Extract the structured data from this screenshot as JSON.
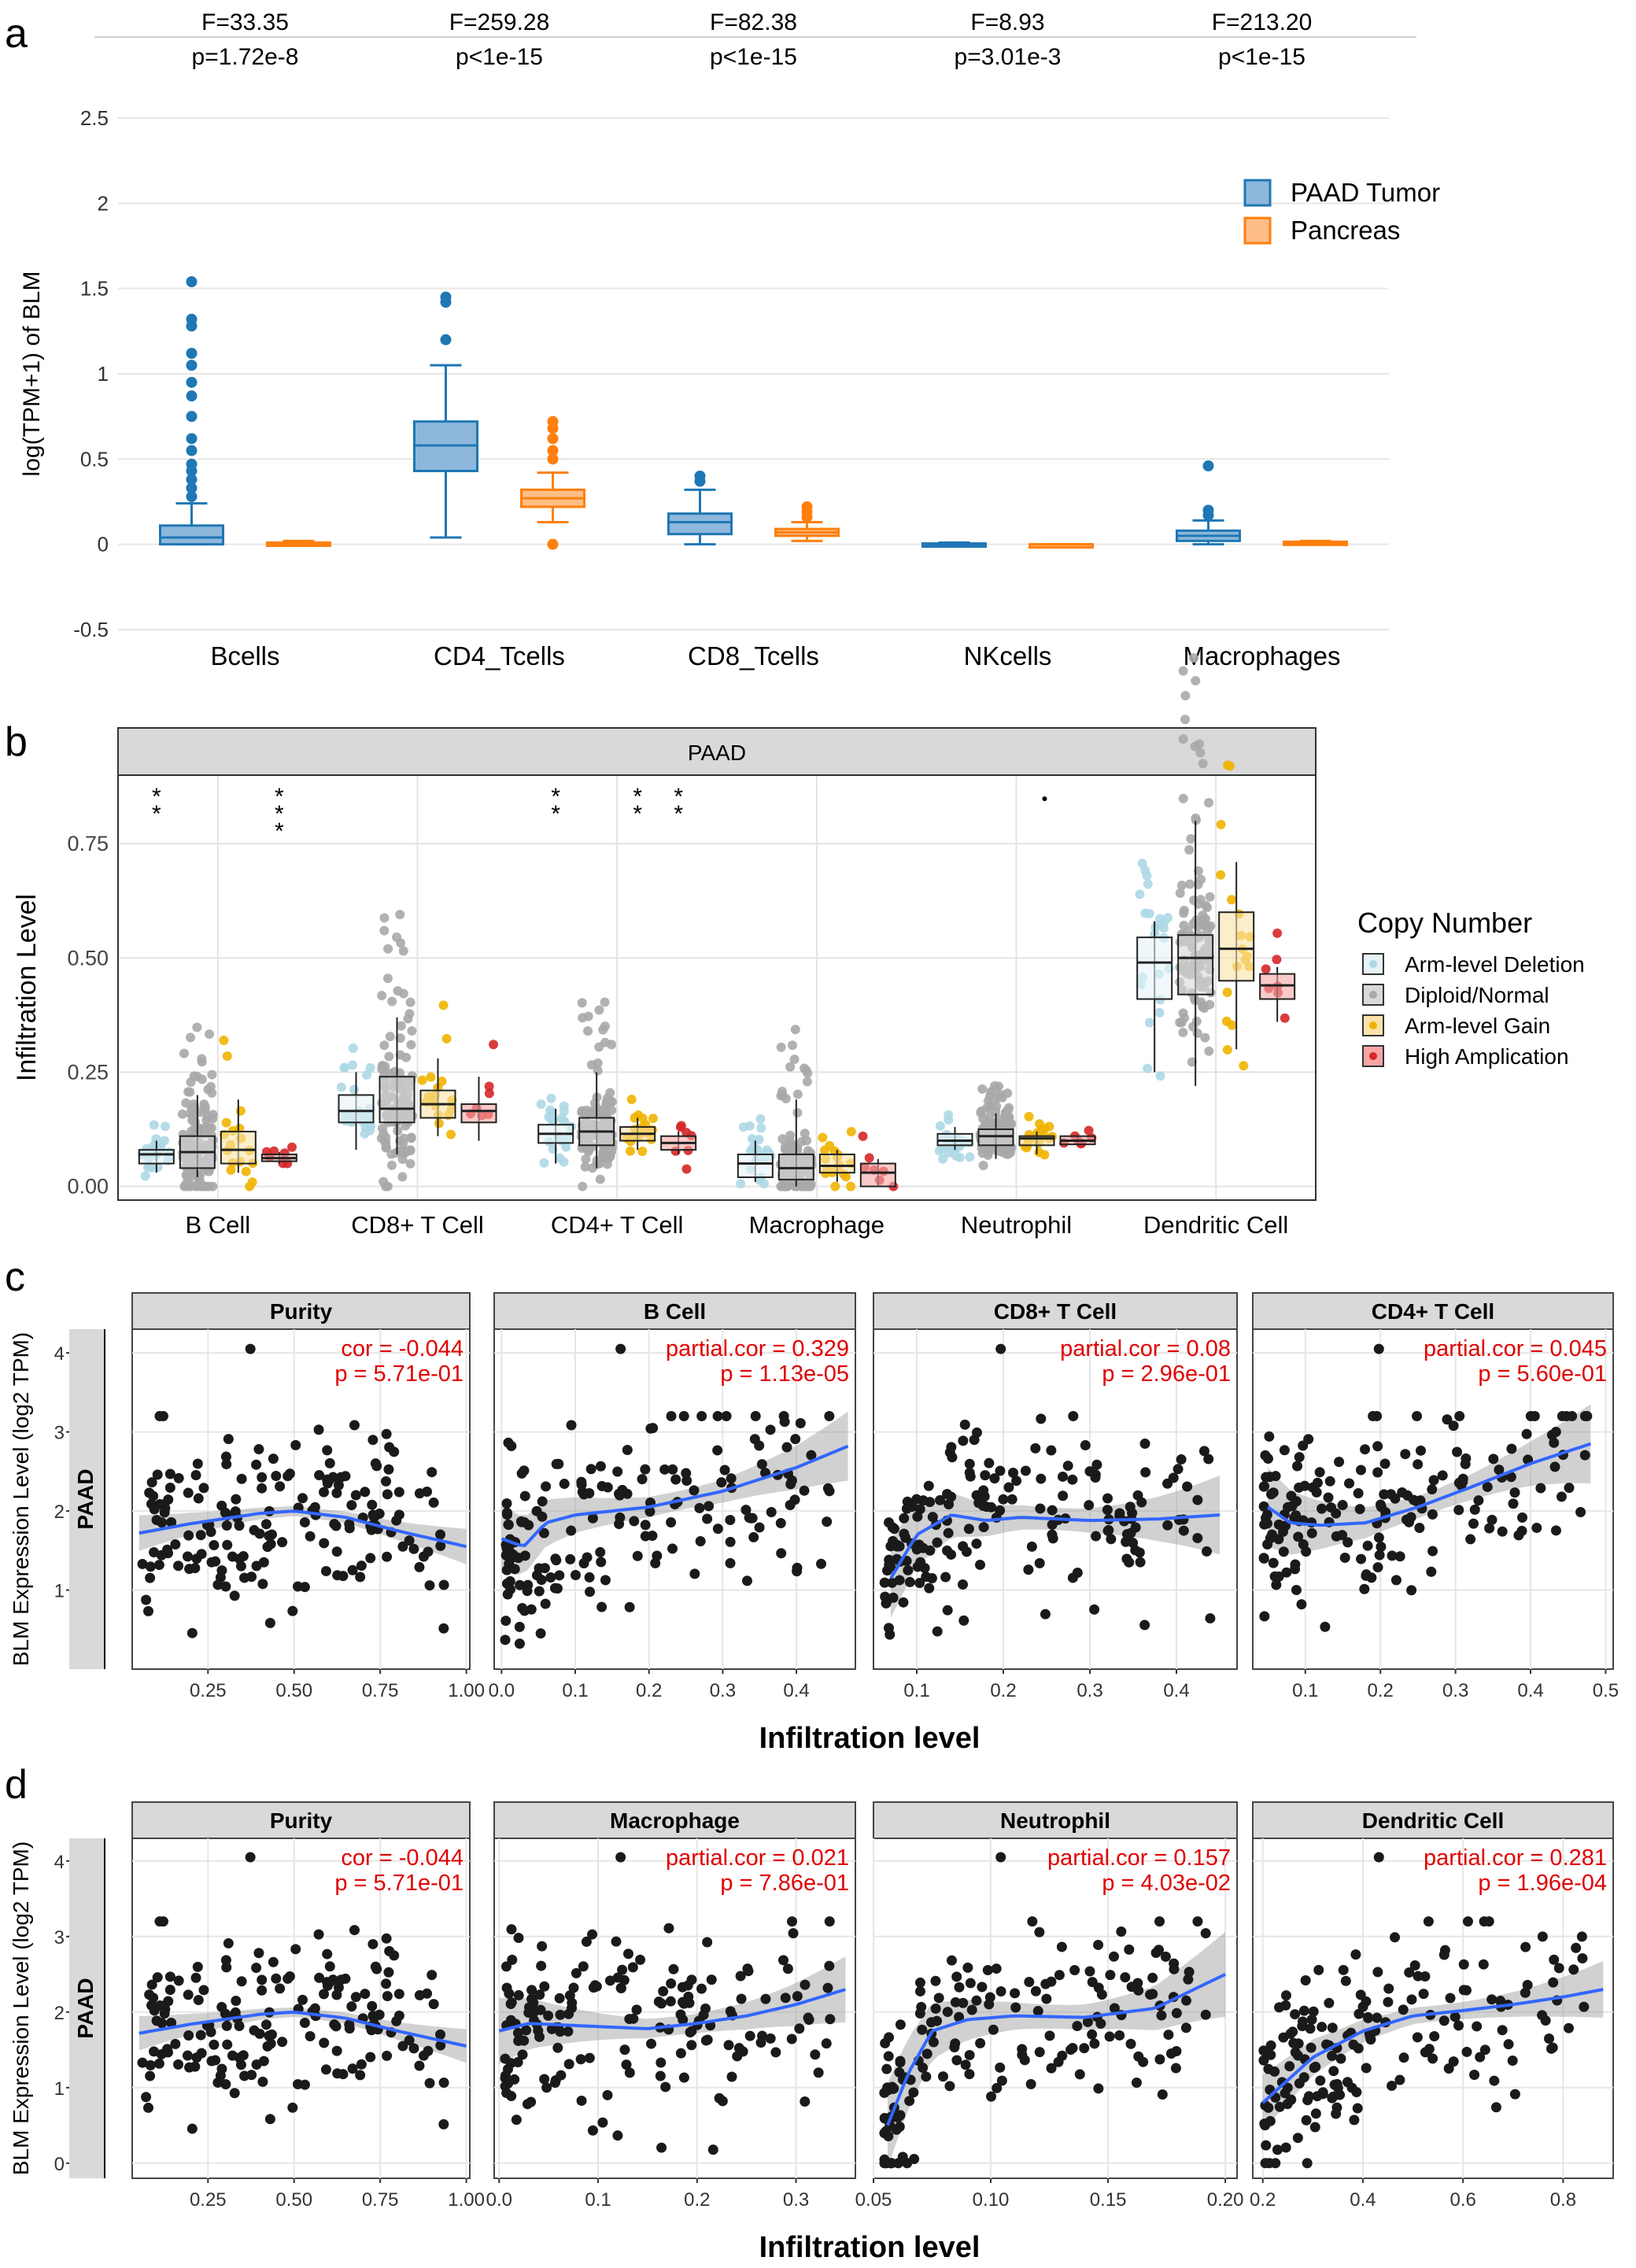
{
  "panel_labels": {
    "a": "a",
    "b": "b",
    "c": "c",
    "d": "d"
  },
  "colors": {
    "tumor": "#1f77b4",
    "tumor_fill": "#8db8dc",
    "normal": "#ff7f0e",
    "normal_fill": "#ffbe86",
    "deletion": "#add8e6",
    "normal_cn": "#a9a9a9",
    "gain": "#f0b400",
    "amp": "#d62728",
    "fit": "#3366ff",
    "cor": "#e00000",
    "strip": "#d9d9d9"
  },
  "chart_data": [
    {
      "id": "a",
      "type": "box",
      "ylabel": "log(TPM+1) of BLM",
      "ylim": [
        -0.5,
        2.5
      ],
      "yticks": [
        "-0.5",
        "0",
        "0.5",
        "1",
        "1.5",
        "2",
        "2.5"
      ],
      "categories": [
        "Bcells",
        "CD4_Tcells",
        "CD8_Tcells",
        "NKcells",
        "Macrophages"
      ],
      "stats": [
        {
          "f": "F=33.35",
          "p": "p=1.72e-8"
        },
        {
          "f": "F=259.28",
          "p": "p<1e-15"
        },
        {
          "f": "F=82.38",
          "p": "p<1e-15"
        },
        {
          "f": "F=8.93",
          "p": "p=3.01e-3"
        },
        {
          "f": "F=213.20",
          "p": "p<1e-15"
        }
      ],
      "legend": [
        "PAAD Tumor",
        "Pancreas"
      ],
      "series": [
        {
          "name": "PAAD Tumor",
          "boxes": [
            {
              "lo": 0,
              "q1": 0,
              "med": 0.04,
              "q3": 0.11,
              "hi": 0.24,
              "out": [
                0.28,
                0.33,
                0.38,
                0.43,
                0.47,
                0.55,
                0.62,
                0.75,
                0.87,
                0.95,
                1.05,
                1.12,
                1.28,
                1.32,
                1.54
              ]
            },
            {
              "lo": 0.04,
              "q1": 0.43,
              "med": 0.58,
              "q3": 0.72,
              "hi": 1.05,
              "out": [
                1.2,
                1.42,
                1.45
              ]
            },
            {
              "lo": 0,
              "q1": 0.06,
              "med": 0.13,
              "q3": 0.18,
              "hi": 0.32,
              "out": [
                0.37,
                0.4
              ]
            },
            {
              "lo": 0,
              "q1": 0,
              "med": 0,
              "q3": 0.005,
              "hi": 0.01,
              "out": []
            },
            {
              "lo": 0,
              "q1": 0.02,
              "med": 0.05,
              "q3": 0.08,
              "hi": 0.14,
              "out": [
                0.17,
                0.2,
                0.46
              ]
            }
          ]
        },
        {
          "name": "Pancreas",
          "boxes": [
            {
              "lo": 0,
              "q1": 0,
              "med": 0,
              "q3": 0.01,
              "hi": 0.02,
              "out": []
            },
            {
              "lo": 0.13,
              "q1": 0.22,
              "med": 0.27,
              "q3": 0.32,
              "hi": 0.42,
              "out": [
                0.0,
                0.5,
                0.55,
                0.62,
                0.68,
                0.72
              ]
            },
            {
              "lo": 0.02,
              "q1": 0.05,
              "med": 0.07,
              "q3": 0.09,
              "hi": 0.13,
              "out": [
                0.16,
                0.19,
                0.22
              ]
            },
            {
              "lo": 0,
              "q1": 0,
              "med": 0,
              "q3": 0,
              "hi": 0,
              "out": []
            },
            {
              "lo": 0,
              "q1": 0,
              "med": 0.01,
              "q3": 0.015,
              "hi": 0.02,
              "out": []
            }
          ]
        }
      ]
    },
    {
      "id": "b",
      "type": "box",
      "strip": "PAAD",
      "ylabel": "Infiltration Level",
      "ylim": [
        -0.03,
        0.9
      ],
      "yticks": [
        "0.00",
        "0.25",
        "0.50",
        "0.75"
      ],
      "categories": [
        "B Cell",
        "CD8+ T Cell",
        "CD4+ T Cell",
        "Macrophage",
        "Neutrophil",
        "Dendritic Cell"
      ],
      "legend_title": "Copy Number",
      "legend": [
        "Arm-level Deletion",
        "Diploid/Normal",
        "Arm-level Gain",
        "High Amplication"
      ],
      "significance": [
        {
          "cat": 0,
          "grp": 0,
          "stars": 2
        },
        {
          "cat": 0,
          "grp": 3,
          "stars": 3
        },
        {
          "cat": 2,
          "grp": 0,
          "stars": 2
        },
        {
          "cat": 2,
          "grp": 2,
          "stars": 2
        },
        {
          "cat": 2,
          "grp": 3,
          "stars": 2
        },
        {
          "cat": 4,
          "grp": 2,
          "stars": 0
        }
      ],
      "boxes": [
        [
          {
            "lo": 0.03,
            "q1": 0.05,
            "med": 0.07,
            "q3": 0.08,
            "hi": 0.1
          },
          {
            "lo": 0.02,
            "q1": 0.04,
            "med": 0.075,
            "q3": 0.11,
            "hi": 0.2
          },
          {
            "lo": 0.03,
            "q1": 0.05,
            "med": 0.08,
            "q3": 0.12,
            "hi": 0.19
          },
          {
            "lo": 0.05,
            "q1": 0.055,
            "med": 0.062,
            "q3": 0.07,
            "hi": 0.075
          }
        ],
        [
          {
            "lo": 0.08,
            "q1": 0.14,
            "med": 0.165,
            "q3": 0.2,
            "hi": 0.25
          },
          {
            "lo": 0.07,
            "q1": 0.14,
            "med": 0.17,
            "q3": 0.24,
            "hi": 0.37
          },
          {
            "lo": 0.11,
            "q1": 0.15,
            "med": 0.18,
            "q3": 0.21,
            "hi": 0.28
          },
          {
            "lo": 0.1,
            "q1": 0.14,
            "med": 0.165,
            "q3": 0.18,
            "hi": 0.24
          }
        ],
        [
          {
            "lo": 0.05,
            "q1": 0.095,
            "med": 0.115,
            "q3": 0.135,
            "hi": 0.17
          },
          {
            "lo": 0.04,
            "q1": 0.09,
            "med": 0.12,
            "q3": 0.15,
            "hi": 0.25
          },
          {
            "lo": 0.08,
            "q1": 0.1,
            "med": 0.115,
            "q3": 0.13,
            "hi": 0.15
          },
          {
            "lo": 0.07,
            "q1": 0.08,
            "med": 0.095,
            "q3": 0.11,
            "hi": 0.12
          }
        ],
        [
          {
            "lo": 0.01,
            "q1": 0.02,
            "med": 0.05,
            "q3": 0.07,
            "hi": 0.1
          },
          {
            "lo": 0.0,
            "q1": 0.015,
            "med": 0.04,
            "q3": 0.07,
            "hi": 0.19
          },
          {
            "lo": 0.01,
            "q1": 0.03,
            "med": 0.045,
            "q3": 0.07,
            "hi": 0.08
          },
          {
            "lo": 0.0,
            "q1": 0.0,
            "med": 0.03,
            "q3": 0.05,
            "hi": 0.06
          }
        ],
        [
          {
            "lo": 0.08,
            "q1": 0.09,
            "med": 0.1,
            "q3": 0.115,
            "hi": 0.13
          },
          {
            "lo": 0.06,
            "q1": 0.09,
            "med": 0.11,
            "q3": 0.125,
            "hi": 0.16
          },
          {
            "lo": 0.07,
            "q1": 0.09,
            "med": 0.105,
            "q3": 0.11,
            "hi": 0.12
          },
          {
            "lo": 0.09,
            "q1": 0.092,
            "med": 0.1,
            "q3": 0.11,
            "hi": 0.112
          }
        ],
        [
          {
            "lo": 0.25,
            "q1": 0.41,
            "med": 0.49,
            "q3": 0.545,
            "hi": 0.58
          },
          {
            "lo": 0.22,
            "q1": 0.42,
            "med": 0.5,
            "q3": 0.55,
            "hi": 0.8
          },
          {
            "lo": 0.3,
            "q1": 0.45,
            "med": 0.52,
            "q3": 0.6,
            "hi": 0.71
          },
          {
            "lo": 0.36,
            "q1": 0.41,
            "med": 0.44,
            "q3": 0.465,
            "hi": 0.48
          }
        ]
      ]
    },
    {
      "id": "c",
      "type": "scatter",
      "ylabel": "BLM Expression Level (log2 TPM)",
      "xlabel": "Infiltration level",
      "row_label": "PAAD",
      "yticks": [
        1,
        2,
        3,
        4
      ],
      "ylim": [
        0,
        4.3
      ],
      "facets": [
        {
          "title": "Purity",
          "cor": "cor = -0.044",
          "p": "p = 5.71e-01",
          "xlim": [
            0.03,
            1.01
          ],
          "xticks": [
            "0.25",
            "0.50",
            "0.75",
            "1.00"
          ],
          "xtickv": [
            0.25,
            0.5,
            0.75,
            1.0
          ],
          "fit_x": [
            0.05,
            0.2,
            0.4,
            0.5,
            0.65,
            0.8,
            1.0
          ],
          "fit_y": [
            1.72,
            1.84,
            1.97,
            2.0,
            1.92,
            1.75,
            1.55
          ],
          "band": 0.18,
          "noise": 0.55,
          "seed": 11
        },
        {
          "title": "B Cell",
          "cor": "partial.cor = 0.329",
          "p": "p = 1.13e-05",
          "xlim": [
            -0.01,
            0.48
          ],
          "xticks": [
            "0.0",
            "0.1",
            "0.2",
            "0.3",
            "0.4"
          ],
          "xtickv": [
            0.0,
            0.1,
            0.2,
            0.3,
            0.4
          ],
          "fit_x": [
            0.0,
            0.03,
            0.06,
            0.1,
            0.2,
            0.3,
            0.4,
            0.47
          ],
          "fit_y": [
            1.65,
            1.55,
            1.85,
            1.95,
            2.05,
            2.25,
            2.55,
            2.82
          ],
          "band": 0.35,
          "noise": 0.6,
          "seed": 23
        },
        {
          "title": "CD8+ T Cell",
          "cor": "partial.cor = 0.08",
          "p": "p = 2.96e-01",
          "xlim": [
            0.05,
            0.47
          ],
          "xticks": [
            "0.1",
            "0.2",
            "0.3",
            "0.4"
          ],
          "xtickv": [
            0.1,
            0.2,
            0.3,
            0.4
          ],
          "fit_x": [
            0.07,
            0.1,
            0.14,
            0.18,
            0.22,
            0.3,
            0.38,
            0.45
          ],
          "fit_y": [
            1.15,
            1.7,
            1.95,
            1.88,
            1.92,
            1.88,
            1.9,
            1.95
          ],
          "band": 0.4,
          "noise": 0.55,
          "seed": 37
        },
        {
          "title": "CD4+ T Cell",
          "cor": "partial.cor = 0.045",
          "p": "p = 5.60e-01",
          "xlim": [
            0.03,
            0.51
          ],
          "xticks": [
            "0.1",
            "0.2",
            "0.3",
            "0.4",
            "0.5"
          ],
          "xtickv": [
            0.1,
            0.2,
            0.3,
            0.4,
            0.5
          ],
          "fit_x": [
            0.05,
            0.08,
            0.12,
            0.18,
            0.25,
            0.32,
            0.4,
            0.48
          ],
          "fit_y": [
            2.05,
            1.85,
            1.82,
            1.85,
            2.05,
            2.3,
            2.6,
            2.85
          ],
          "band": 0.4,
          "noise": 0.55,
          "seed": 41
        }
      ]
    },
    {
      "id": "d",
      "type": "scatter",
      "ylabel": "BLM Expression Level (log2 TPM)",
      "xlabel": "Infiltration level",
      "row_label": "PAAD",
      "yticks": [
        0,
        1,
        2,
        3,
        4
      ],
      "ylim": [
        -0.2,
        4.3
      ],
      "facets": [
        {
          "title": "Purity",
          "cor": "cor = -0.044",
          "p": "p = 5.71e-01",
          "xlim": [
            0.03,
            1.01
          ],
          "xticks": [
            "0.25",
            "0.50",
            "0.75",
            "1.00"
          ],
          "xtickv": [
            0.25,
            0.5,
            0.75,
            1.0
          ],
          "fit_x": [
            0.05,
            0.2,
            0.4,
            0.5,
            0.65,
            0.8,
            1.0
          ],
          "fit_y": [
            1.72,
            1.84,
            1.97,
            2.0,
            1.92,
            1.75,
            1.55
          ],
          "band": 0.18,
          "noise": 0.55,
          "seed": 11
        },
        {
          "title": "Macrophage",
          "cor": "partial.cor = 0.021",
          "p": "p = 7.86e-01",
          "xlim": [
            -0.005,
            0.36
          ],
          "xticks": [
            "0.0",
            "0.1",
            "0.2",
            "0.3"
          ],
          "xtickv": [
            0.0,
            0.1,
            0.2,
            0.3
          ],
          "fit_x": [
            0.0,
            0.03,
            0.08,
            0.15,
            0.2,
            0.25,
            0.3,
            0.35
          ],
          "fit_y": [
            1.75,
            1.85,
            1.82,
            1.78,
            1.85,
            1.95,
            2.1,
            2.3
          ],
          "band": 0.35,
          "noise": 0.6,
          "seed": 53
        },
        {
          "title": "Neutrophil",
          "cor": "partial.cor = 0.157",
          "p": "p = 4.03e-02",
          "xlim": [
            0.05,
            0.205
          ],
          "xticks": [
            "0.05",
            "0.10",
            "0.15",
            "0.20"
          ],
          "xtickv": [
            0.05,
            0.1,
            0.15,
            0.2
          ],
          "fit_x": [
            0.056,
            0.065,
            0.075,
            0.09,
            0.11,
            0.14,
            0.17,
            0.2
          ],
          "fit_y": [
            0.5,
            1.2,
            1.75,
            1.9,
            1.95,
            1.93,
            2.05,
            2.5
          ],
          "band": 0.45,
          "noise": 0.55,
          "seed": 67
        },
        {
          "title": "Dendritic Cell",
          "cor": "partial.cor = 0.281",
          "p": "p = 1.96e-04",
          "xlim": [
            0.18,
            0.9
          ],
          "xticks": [
            "0.2",
            "0.4",
            "0.6",
            "0.8"
          ],
          "xtickv": [
            0.2,
            0.4,
            0.6,
            0.8
          ],
          "fit_x": [
            0.2,
            0.3,
            0.4,
            0.5,
            0.6,
            0.7,
            0.8,
            0.88
          ],
          "fit_y": [
            0.8,
            1.4,
            1.75,
            1.95,
            2.02,
            2.1,
            2.2,
            2.3
          ],
          "band": 0.3,
          "noise": 0.55,
          "seed": 79
        }
      ]
    }
  ]
}
